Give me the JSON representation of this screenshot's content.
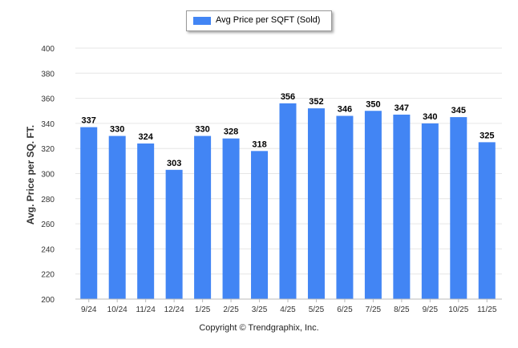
{
  "chart_data": {
    "type": "bar",
    "categories": [
      "9/24",
      "10/24",
      "11/24",
      "12/24",
      "1/25",
      "2/25",
      "3/25",
      "4/25",
      "5/25",
      "6/25",
      "7/25",
      "8/25",
      "9/25",
      "10/25",
      "11/25"
    ],
    "series": [
      {
        "name": "Avg Price per SQFT (Sold)",
        "values": [
          337,
          330,
          324,
          303,
          330,
          328,
          318,
          356,
          352,
          346,
          350,
          347,
          340,
          345,
          325
        ]
      }
    ],
    "ylabel": "Avg. Price per SQ. FT.",
    "xlabel": "",
    "ylim": [
      200,
      400
    ],
    "yticks": [
      200,
      220,
      240,
      260,
      280,
      300,
      320,
      340,
      360,
      380,
      400
    ],
    "grid": true,
    "data_labels": true,
    "legend_position": "top-center",
    "bar_color": "#4285f4"
  },
  "footer": {
    "copyright": "Copyright © Trendgraphix, Inc."
  }
}
